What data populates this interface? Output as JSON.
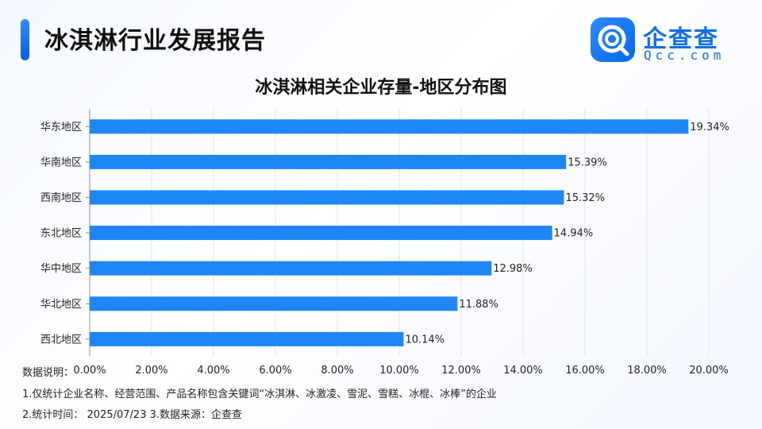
{
  "header": {
    "title": "冰淇淋行业发展报告",
    "logo_name": "企查查",
    "logo_domain": "Qcc.com",
    "accent_color": "#1f86f5"
  },
  "chart_data": {
    "type": "bar",
    "orientation": "horizontal",
    "title": "冰淇淋相关企业存量-地区分布图",
    "categories": [
      "华东地区",
      "华南地区",
      "西南地区",
      "东北地区",
      "华中地区",
      "华北地区",
      "西北地区"
    ],
    "values": [
      19.34,
      15.39,
      15.32,
      14.94,
      12.98,
      11.88,
      10.14
    ],
    "value_labels": [
      "19.34%",
      "15.39%",
      "15.32%",
      "14.94%",
      "12.98%",
      "11.88%",
      "10.14%"
    ],
    "xlim": [
      0,
      20
    ],
    "x_ticks": [
      "0.00%",
      "2.00%",
      "4.00%",
      "6.00%",
      "8.00%",
      "10.00%",
      "12.00%",
      "14.00%",
      "16.00%",
      "18.00%",
      "20.00%"
    ],
    "grid": true,
    "bar_color": "#1f86f5"
  },
  "notes": {
    "legend_label": "数据说明：",
    "line1": "1.仅统计企业名称、经营范围、产品名称包含关键词“冰淇淋、冰激凌、雪泥、雪糕、冰棍、冰棒”的企业",
    "line2": "2.统计时间： 2025/07/23    3.数据来源：企查查"
  }
}
